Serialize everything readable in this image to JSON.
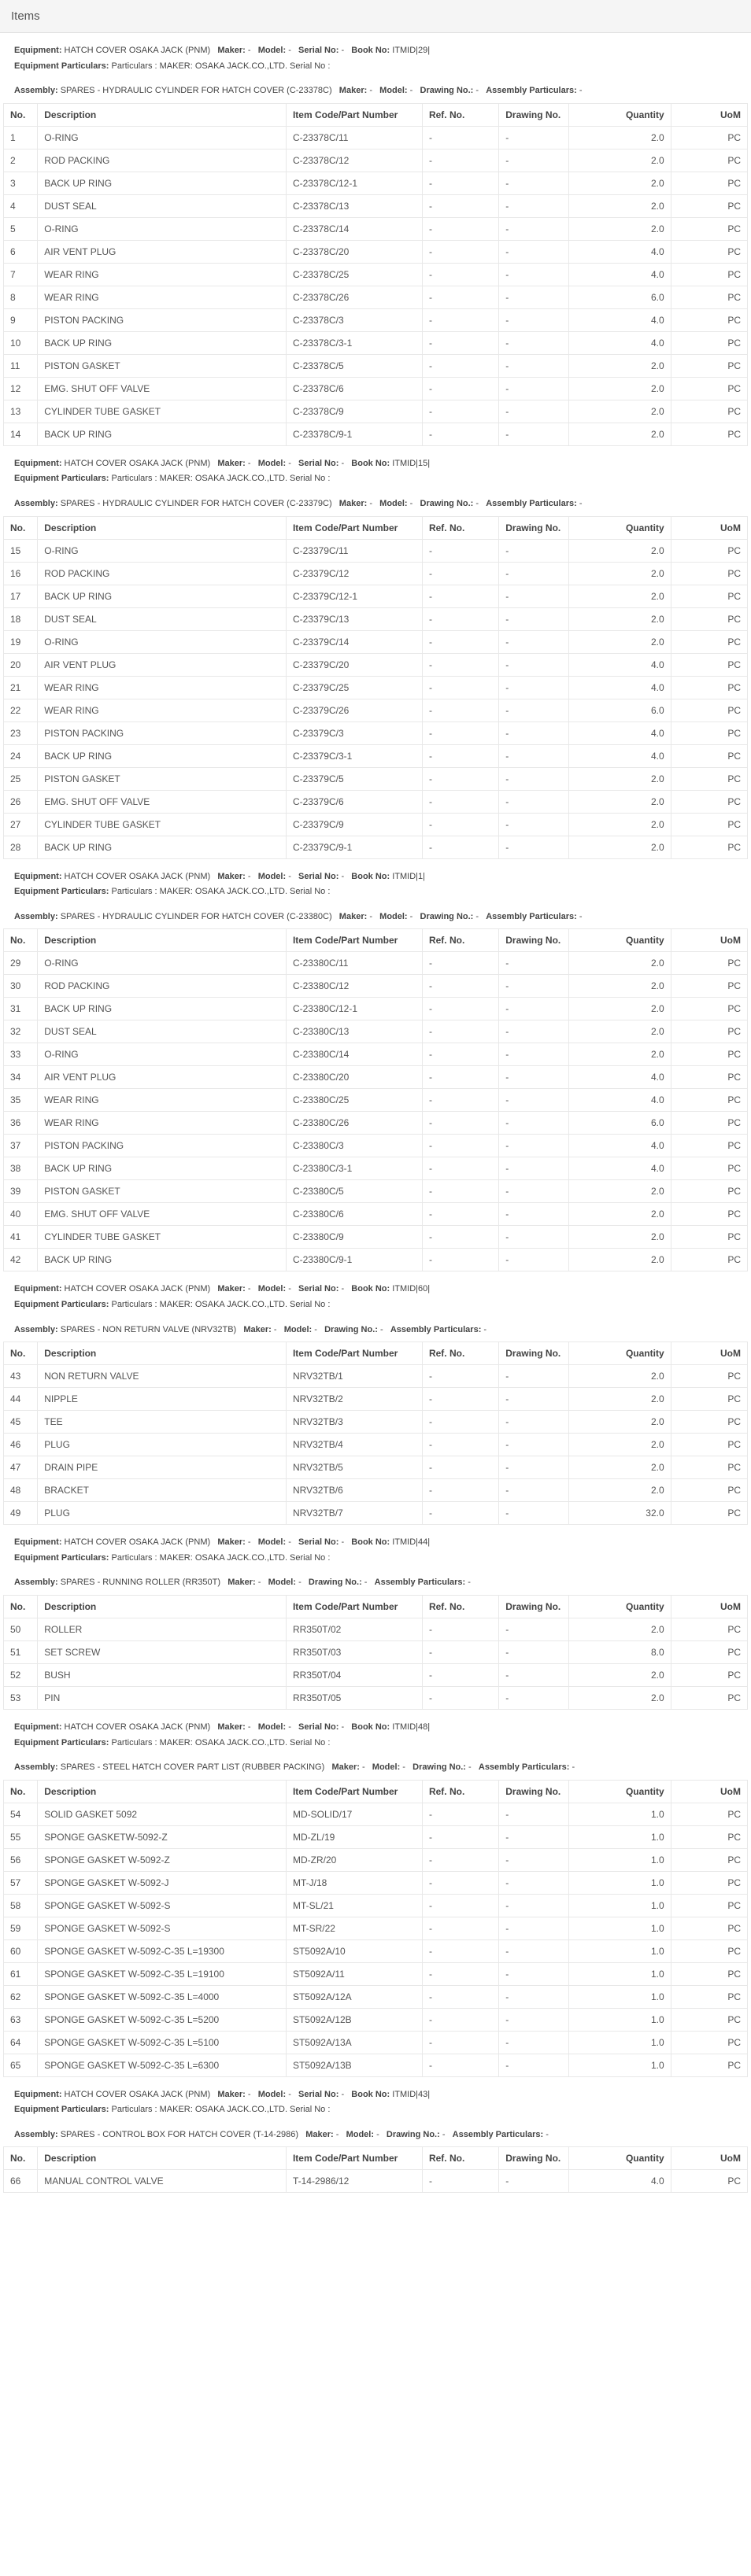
{
  "pageTitle": "Items",
  "headers": {
    "no": "No.",
    "description": "Description",
    "itemCode": "Item Code/Part Number",
    "refNo": "Ref. No.",
    "drawingNo": "Drawing No.",
    "quantity": "Quantity",
    "uom": "UoM"
  },
  "labels": {
    "equipment": "Equipment:",
    "maker": "Maker:",
    "model": "Model:",
    "serialNo": "Serial No:",
    "bookNo": "Book No:",
    "equipmentParticulars": "Equipment Particulars:",
    "assembly": "Assembly:",
    "drawingNo2": "Drawing No.:",
    "assemblyParticulars": "Assembly Particulars:",
    "dash": "-"
  },
  "groups": [
    {
      "equipment": "HATCH COVER OSAKA JACK (PNM)",
      "bookNo": "ITMID|29|",
      "particulars": "Particulars : MAKER: OSAKA JACK.CO.,LTD. Serial No :",
      "assembly": "SPARES - HYDRAULIC CYLINDER FOR HATCH COVER (C-23378C)",
      "rows": [
        {
          "no": "1",
          "desc": "O-RING",
          "code": "C-23378C/11",
          "ref": "-",
          "draw": "-",
          "qty": "2.0",
          "uom": "PC"
        },
        {
          "no": "2",
          "desc": "ROD PACKING",
          "code": "C-23378C/12",
          "ref": "-",
          "draw": "-",
          "qty": "2.0",
          "uom": "PC"
        },
        {
          "no": "3",
          "desc": "BACK UP RING",
          "code": "C-23378C/12-1",
          "ref": "-",
          "draw": "-",
          "qty": "2.0",
          "uom": "PC"
        },
        {
          "no": "4",
          "desc": "DUST SEAL",
          "code": "C-23378C/13",
          "ref": "-",
          "draw": "-",
          "qty": "2.0",
          "uom": "PC"
        },
        {
          "no": "5",
          "desc": "O-RING",
          "code": "C-23378C/14",
          "ref": "-",
          "draw": "-",
          "qty": "2.0",
          "uom": "PC"
        },
        {
          "no": "6",
          "desc": "AIR VENT PLUG",
          "code": "C-23378C/20",
          "ref": "-",
          "draw": "-",
          "qty": "4.0",
          "uom": "PC"
        },
        {
          "no": "7",
          "desc": "WEAR RING",
          "code": "C-23378C/25",
          "ref": "-",
          "draw": "-",
          "qty": "4.0",
          "uom": "PC"
        },
        {
          "no": "8",
          "desc": "WEAR RING",
          "code": "C-23378C/26",
          "ref": "-",
          "draw": "-",
          "qty": "6.0",
          "uom": "PC"
        },
        {
          "no": "9",
          "desc": "PISTON PACKING",
          "code": "C-23378C/3",
          "ref": "-",
          "draw": "-",
          "qty": "4.0",
          "uom": "PC"
        },
        {
          "no": "10",
          "desc": "BACK UP RING",
          "code": "C-23378C/3-1",
          "ref": "-",
          "draw": "-",
          "qty": "4.0",
          "uom": "PC"
        },
        {
          "no": "11",
          "desc": "PISTON GASKET",
          "code": "C-23378C/5",
          "ref": "-",
          "draw": "-",
          "qty": "2.0",
          "uom": "PC"
        },
        {
          "no": "12",
          "desc": "EMG. SHUT OFF VALVE",
          "code": "C-23378C/6",
          "ref": "-",
          "draw": "-",
          "qty": "2.0",
          "uom": "PC"
        },
        {
          "no": "13",
          "desc": "CYLINDER TUBE GASKET",
          "code": "C-23378C/9",
          "ref": "-",
          "draw": "-",
          "qty": "2.0",
          "uom": "PC"
        },
        {
          "no": "14",
          "desc": "BACK UP RING",
          "code": "C-23378C/9-1",
          "ref": "-",
          "draw": "-",
          "qty": "2.0",
          "uom": "PC"
        }
      ]
    },
    {
      "equipment": "HATCH COVER OSAKA JACK (PNM)",
      "bookNo": "ITMID|15|",
      "particulars": "Particulars : MAKER: OSAKA JACK.CO.,LTD. Serial No :",
      "assembly": "SPARES - HYDRAULIC CYLINDER FOR HATCH COVER (C-23379C)",
      "rows": [
        {
          "no": "15",
          "desc": "O-RING",
          "code": "C-23379C/11",
          "ref": "-",
          "draw": "-",
          "qty": "2.0",
          "uom": "PC"
        },
        {
          "no": "16",
          "desc": "ROD PACKING",
          "code": "C-23379C/12",
          "ref": "-",
          "draw": "-",
          "qty": "2.0",
          "uom": "PC"
        },
        {
          "no": "17",
          "desc": "BACK UP RING",
          "code": "C-23379C/12-1",
          "ref": "-",
          "draw": "-",
          "qty": "2.0",
          "uom": "PC"
        },
        {
          "no": "18",
          "desc": "DUST SEAL",
          "code": "C-23379C/13",
          "ref": "-",
          "draw": "-",
          "qty": "2.0",
          "uom": "PC"
        },
        {
          "no": "19",
          "desc": "O-RING",
          "code": "C-23379C/14",
          "ref": "-",
          "draw": "-",
          "qty": "2.0",
          "uom": "PC"
        },
        {
          "no": "20",
          "desc": "AIR VENT PLUG",
          "code": "C-23379C/20",
          "ref": "-",
          "draw": "-",
          "qty": "4.0",
          "uom": "PC"
        },
        {
          "no": "21",
          "desc": "WEAR RING",
          "code": "C-23379C/25",
          "ref": "-",
          "draw": "-",
          "qty": "4.0",
          "uom": "PC"
        },
        {
          "no": "22",
          "desc": "WEAR RING",
          "code": "C-23379C/26",
          "ref": "-",
          "draw": "-",
          "qty": "6.0",
          "uom": "PC"
        },
        {
          "no": "23",
          "desc": "PISTON PACKING",
          "code": "C-23379C/3",
          "ref": "-",
          "draw": "-",
          "qty": "4.0",
          "uom": "PC"
        },
        {
          "no": "24",
          "desc": "BACK UP RING",
          "code": "C-23379C/3-1",
          "ref": "-",
          "draw": "-",
          "qty": "4.0",
          "uom": "PC"
        },
        {
          "no": "25",
          "desc": "PISTON GASKET",
          "code": "C-23379C/5",
          "ref": "-",
          "draw": "-",
          "qty": "2.0",
          "uom": "PC"
        },
        {
          "no": "26",
          "desc": "EMG. SHUT OFF VALVE",
          "code": "C-23379C/6",
          "ref": "-",
          "draw": "-",
          "qty": "2.0",
          "uom": "PC"
        },
        {
          "no": "27",
          "desc": "CYLINDER TUBE GASKET",
          "code": "C-23379C/9",
          "ref": "-",
          "draw": "-",
          "qty": "2.0",
          "uom": "PC"
        },
        {
          "no": "28",
          "desc": "BACK UP RING",
          "code": "C-23379C/9-1",
          "ref": "-",
          "draw": "-",
          "qty": "2.0",
          "uom": "PC"
        }
      ]
    },
    {
      "equipment": "HATCH COVER OSAKA JACK (PNM)",
      "bookNo": "ITMID|1|",
      "particulars": "Particulars : MAKER: OSAKA JACK.CO.,LTD. Serial No :",
      "assembly": "SPARES - HYDRAULIC CYLINDER FOR HATCH COVER (C-23380C)",
      "rows": [
        {
          "no": "29",
          "desc": "O-RING",
          "code": "C-23380C/11",
          "ref": "-",
          "draw": "-",
          "qty": "2.0",
          "uom": "PC"
        },
        {
          "no": "30",
          "desc": "ROD PACKING",
          "code": "C-23380C/12",
          "ref": "-",
          "draw": "-",
          "qty": "2.0",
          "uom": "PC"
        },
        {
          "no": "31",
          "desc": "BACK UP RING",
          "code": "C-23380C/12-1",
          "ref": "-",
          "draw": "-",
          "qty": "2.0",
          "uom": "PC"
        },
        {
          "no": "32",
          "desc": "DUST SEAL",
          "code": "C-23380C/13",
          "ref": "-",
          "draw": "-",
          "qty": "2.0",
          "uom": "PC"
        },
        {
          "no": "33",
          "desc": "O-RING",
          "code": "C-23380C/14",
          "ref": "-",
          "draw": "-",
          "qty": "2.0",
          "uom": "PC"
        },
        {
          "no": "34",
          "desc": "AIR VENT PLUG",
          "code": "C-23380C/20",
          "ref": "-",
          "draw": "-",
          "qty": "4.0",
          "uom": "PC"
        },
        {
          "no": "35",
          "desc": "WEAR RING",
          "code": "C-23380C/25",
          "ref": "-",
          "draw": "-",
          "qty": "4.0",
          "uom": "PC"
        },
        {
          "no": "36",
          "desc": "WEAR RING",
          "code": "C-23380C/26",
          "ref": "-",
          "draw": "-",
          "qty": "6.0",
          "uom": "PC"
        },
        {
          "no": "37",
          "desc": "PISTON PACKING",
          "code": "C-23380C/3",
          "ref": "-",
          "draw": "-",
          "qty": "4.0",
          "uom": "PC"
        },
        {
          "no": "38",
          "desc": "BACK UP RING",
          "code": "C-23380C/3-1",
          "ref": "-",
          "draw": "-",
          "qty": "4.0",
          "uom": "PC"
        },
        {
          "no": "39",
          "desc": "PISTON GASKET",
          "code": "C-23380C/5",
          "ref": "-",
          "draw": "-",
          "qty": "2.0",
          "uom": "PC"
        },
        {
          "no": "40",
          "desc": "EMG. SHUT OFF VALVE",
          "code": "C-23380C/6",
          "ref": "-",
          "draw": "-",
          "qty": "2.0",
          "uom": "PC"
        },
        {
          "no": "41",
          "desc": "CYLINDER TUBE GASKET",
          "code": "C-23380C/9",
          "ref": "-",
          "draw": "-",
          "qty": "2.0",
          "uom": "PC"
        },
        {
          "no": "42",
          "desc": "BACK UP RING",
          "code": "C-23380C/9-1",
          "ref": "-",
          "draw": "-",
          "qty": "2.0",
          "uom": "PC"
        }
      ]
    },
    {
      "equipment": "HATCH COVER OSAKA JACK (PNM)",
      "bookNo": "ITMID|60|",
      "particulars": "Particulars : MAKER: OSAKA JACK.CO.,LTD. Serial No :",
      "assembly": "SPARES - NON RETURN VALVE (NRV32TB)",
      "rows": [
        {
          "no": "43",
          "desc": "NON RETURN VALVE",
          "code": "NRV32TB/1",
          "ref": "-",
          "draw": "-",
          "qty": "2.0",
          "uom": "PC"
        },
        {
          "no": "44",
          "desc": "NIPPLE",
          "code": "NRV32TB/2",
          "ref": "-",
          "draw": "-",
          "qty": "2.0",
          "uom": "PC"
        },
        {
          "no": "45",
          "desc": "TEE",
          "code": "NRV32TB/3",
          "ref": "-",
          "draw": "-",
          "qty": "2.0",
          "uom": "PC"
        },
        {
          "no": "46",
          "desc": "PLUG",
          "code": "NRV32TB/4",
          "ref": "-",
          "draw": "-",
          "qty": "2.0",
          "uom": "PC"
        },
        {
          "no": "47",
          "desc": "DRAIN PIPE",
          "code": "NRV32TB/5",
          "ref": "-",
          "draw": "-",
          "qty": "2.0",
          "uom": "PC"
        },
        {
          "no": "48",
          "desc": "BRACKET",
          "code": "NRV32TB/6",
          "ref": "-",
          "draw": "-",
          "qty": "2.0",
          "uom": "PC"
        },
        {
          "no": "49",
          "desc": "PLUG",
          "code": "NRV32TB/7",
          "ref": "-",
          "draw": "-",
          "qty": "32.0",
          "uom": "PC"
        }
      ]
    },
    {
      "equipment": "HATCH COVER OSAKA JACK (PNM)",
      "bookNo": "ITMID|44|",
      "particulars": "Particulars : MAKER: OSAKA JACK.CO.,LTD. Serial No :",
      "assembly": "SPARES - RUNNING ROLLER (RR350T)",
      "rows": [
        {
          "no": "50",
          "desc": "ROLLER",
          "code": "RR350T/02",
          "ref": "-",
          "draw": "-",
          "qty": "2.0",
          "uom": "PC"
        },
        {
          "no": "51",
          "desc": "SET SCREW",
          "code": "RR350T/03",
          "ref": "-",
          "draw": "-",
          "qty": "8.0",
          "uom": "PC"
        },
        {
          "no": "52",
          "desc": "BUSH",
          "code": "RR350T/04",
          "ref": "-",
          "draw": "-",
          "qty": "2.0",
          "uom": "PC"
        },
        {
          "no": "53",
          "desc": "PIN",
          "code": "RR350T/05",
          "ref": "-",
          "draw": "-",
          "qty": "2.0",
          "uom": "PC"
        }
      ]
    },
    {
      "equipment": "HATCH COVER OSAKA JACK (PNM)",
      "bookNo": "ITMID|48|",
      "particulars": "Particulars : MAKER: OSAKA JACK.CO.,LTD. Serial No :",
      "assembly": "SPARES - STEEL HATCH COVER PART LIST (RUBBER PACKING)",
      "rows": [
        {
          "no": "54",
          "desc": "SOLID GASKET 5092",
          "code": "MD-SOLID/17",
          "ref": "-",
          "draw": "-",
          "qty": "1.0",
          "uom": "PC"
        },
        {
          "no": "55",
          "desc": "SPONGE GASKETW-5092-Z",
          "code": "MD-ZL/19",
          "ref": "-",
          "draw": "-",
          "qty": "1.0",
          "uom": "PC"
        },
        {
          "no": "56",
          "desc": "SPONGE GASKET W-5092-Z",
          "code": "MD-ZR/20",
          "ref": "-",
          "draw": "-",
          "qty": "1.0",
          "uom": "PC"
        },
        {
          "no": "57",
          "desc": "SPONGE GASKET W-5092-J",
          "code": "MT-J/18",
          "ref": "-",
          "draw": "-",
          "qty": "1.0",
          "uom": "PC"
        },
        {
          "no": "58",
          "desc": "SPONGE GASKET W-5092-S",
          "code": "MT-SL/21",
          "ref": "-",
          "draw": "-",
          "qty": "1.0",
          "uom": "PC"
        },
        {
          "no": "59",
          "desc": "SPONGE GASKET W-5092-S",
          "code": "MT-SR/22",
          "ref": "-",
          "draw": "-",
          "qty": "1.0",
          "uom": "PC"
        },
        {
          "no": "60",
          "desc": "SPONGE GASKET W-5092-C-35 L=19300",
          "code": "ST5092A/10",
          "ref": "-",
          "draw": "-",
          "qty": "1.0",
          "uom": "PC"
        },
        {
          "no": "61",
          "desc": "SPONGE GASKET W-5092-C-35 L=19100",
          "code": "ST5092A/11",
          "ref": "-",
          "draw": "-",
          "qty": "1.0",
          "uom": "PC"
        },
        {
          "no": "62",
          "desc": "SPONGE GASKET W-5092-C-35 L=4000",
          "code": "ST5092A/12A",
          "ref": "-",
          "draw": "-",
          "qty": "1.0",
          "uom": "PC"
        },
        {
          "no": "63",
          "desc": "SPONGE GASKET W-5092-C-35 L=5200",
          "code": "ST5092A/12B",
          "ref": "-",
          "draw": "-",
          "qty": "1.0",
          "uom": "PC"
        },
        {
          "no": "64",
          "desc": "SPONGE GASKET W-5092-C-35 L=5100",
          "code": "ST5092A/13A",
          "ref": "-",
          "draw": "-",
          "qty": "1.0",
          "uom": "PC"
        },
        {
          "no": "65",
          "desc": "SPONGE GASKET W-5092-C-35 L=6300",
          "code": "ST5092A/13B",
          "ref": "-",
          "draw": "-",
          "qty": "1.0",
          "uom": "PC"
        }
      ]
    },
    {
      "equipment": "HATCH COVER OSAKA JACK (PNM)",
      "bookNo": "ITMID|43|",
      "particulars": "Particulars : MAKER: OSAKA JACK.CO.,LTD. Serial No :",
      "assembly": "SPARES - CONTROL BOX FOR HATCH COVER (T-14-2986)",
      "rows": [
        {
          "no": "66",
          "desc": "MANUAL CONTROL VALVE",
          "code": "T-14-2986/12",
          "ref": "-",
          "draw": "-",
          "qty": "4.0",
          "uom": "PC"
        }
      ]
    }
  ]
}
